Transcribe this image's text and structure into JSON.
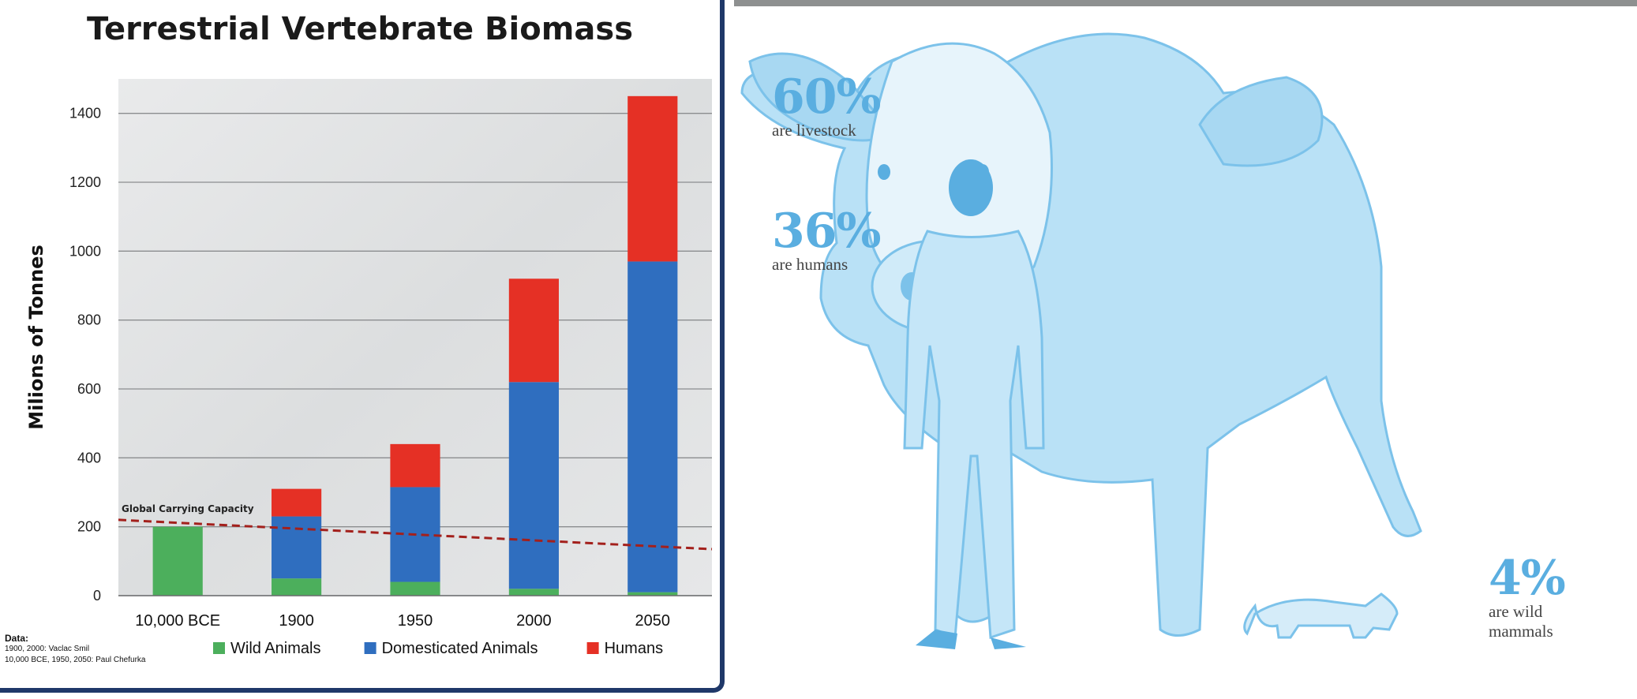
{
  "chart_data": {
    "type": "bar",
    "stacked": true,
    "title": "Terrestrial Vertebrate Biomass",
    "ylabel": "Milions of Tonnes",
    "xlabel": "",
    "ylim": [
      0,
      1500
    ],
    "yticks": [
      0,
      200,
      400,
      600,
      800,
      1000,
      1200,
      1400
    ],
    "grid": true,
    "legend_position": "bottom",
    "categories": [
      "10,000 BCE",
      "1900",
      "1950",
      "2000",
      "2050"
    ],
    "series": [
      {
        "name": "Wild Animals",
        "color": "#4caf5c",
        "values": [
          200,
          50,
          40,
          20,
          10
        ]
      },
      {
        "name": "Domesticated Animals",
        "color": "#2f6ebf",
        "values": [
          0,
          180,
          275,
          600,
          960
        ]
      },
      {
        "name": "Humans",
        "color": "#e53025",
        "values": [
          0,
          80,
          125,
          300,
          480
        ]
      }
    ],
    "carrying_capacity": {
      "label": "Global Carrying Capacity",
      "start": 220,
      "end": 135,
      "color": "#a3201c"
    },
    "source": {
      "header": "Data:",
      "lines": [
        "1900, 2000: Vaclac Smil",
        "10,000 BCE, 1950, 2050: Paul Chefurka"
      ]
    }
  },
  "infographic": {
    "stats": [
      {
        "value": "60%",
        "label": "are livestock"
      },
      {
        "value": "36%",
        "label": "are humans"
      },
      {
        "value": "4%",
        "label": "are wild mammals"
      }
    ],
    "color": "#5aaee0"
  }
}
